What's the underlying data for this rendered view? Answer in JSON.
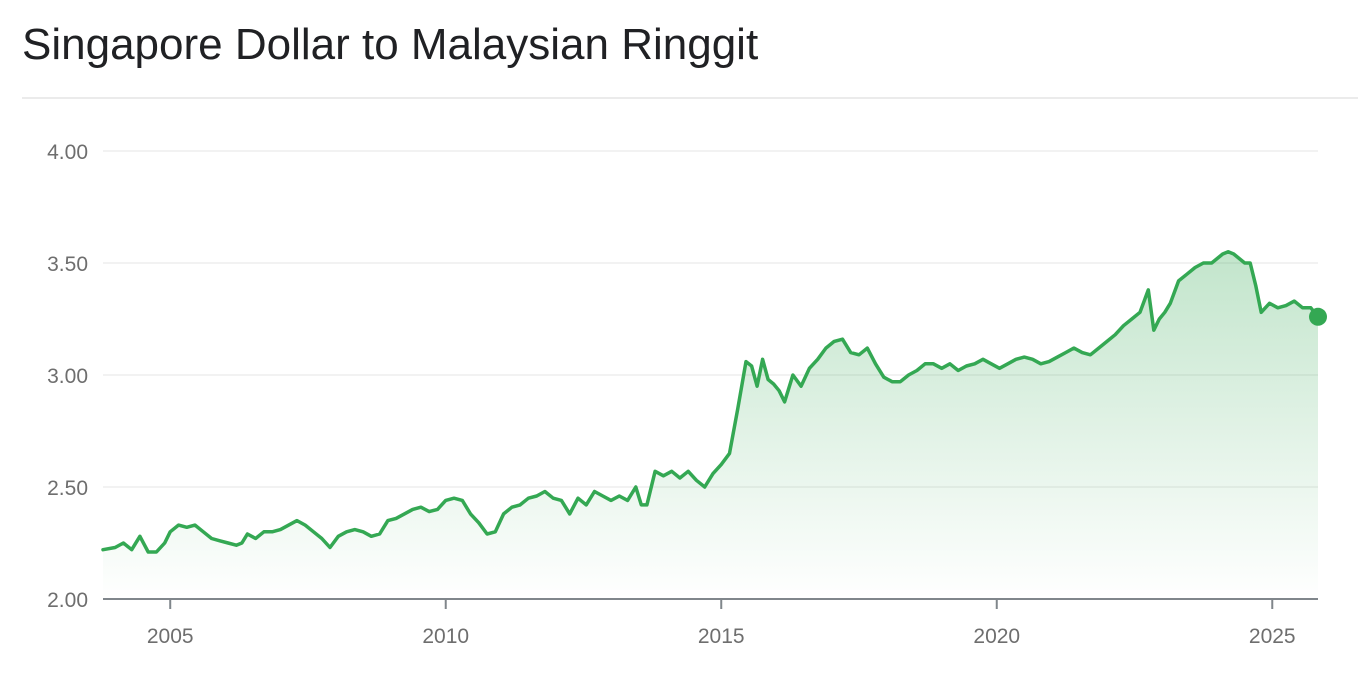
{
  "chart_data": {
    "type": "area",
    "title": "Singapore Dollar to Malaysian Ringgit",
    "xlabel": "",
    "ylabel": "",
    "xlim": [
      2003.78,
      2025.83
    ],
    "ylim": [
      2.0,
      4.0
    ],
    "y_ticks": [
      "2.00",
      "2.50",
      "3.00",
      "3.50",
      "4.00"
    ],
    "x_ticks": [
      "2005",
      "2010",
      "2015",
      "2020",
      "2025"
    ],
    "grid": true,
    "color": "#34a853",
    "series": [
      {
        "x": [
          2003.78,
          2004.0,
          2004.15,
          2004.3,
          2004.45,
          2004.6,
          2004.75,
          2004.9,
          2005.0,
          2005.15,
          2005.3,
          2005.45,
          2005.6,
          2005.75,
          2005.9,
          2006.05,
          2006.2,
          2006.3,
          2006.4,
          2006.55,
          2006.7,
          2006.85,
          2007.0,
          2007.15,
          2007.3,
          2007.45,
          2007.6,
          2007.75,
          2007.9,
          2008.05,
          2008.2,
          2008.35,
          2008.5,
          2008.65,
          2008.8,
          2008.95,
          2009.1,
          2009.25,
          2009.4,
          2009.55,
          2009.7,
          2009.85,
          2010.0,
          2010.15,
          2010.3,
          2010.45,
          2010.6,
          2010.75,
          2010.9,
          2011.05,
          2011.2,
          2011.35,
          2011.5,
          2011.65,
          2011.8,
          2011.95,
          2012.1,
          2012.25,
          2012.4,
          2012.55,
          2012.7,
          2012.85,
          2013.0,
          2013.15,
          2013.3,
          2013.45,
          2013.55,
          2013.65,
          2013.8,
          2013.95,
          2014.1,
          2014.25,
          2014.4,
          2014.55,
          2014.7,
          2014.85,
          2015.0,
          2015.15,
          2015.3,
          2015.45,
          2015.55,
          2015.65,
          2015.75,
          2015.85,
          2015.95,
          2016.05,
          2016.15,
          2016.3,
          2016.45,
          2016.6,
          2016.75,
          2016.9,
          2017.05,
          2017.2,
          2017.35,
          2017.5,
          2017.65,
          2017.8,
          2017.95,
          2018.1,
          2018.25,
          2018.4,
          2018.55,
          2018.7,
          2018.85,
          2019.0,
          2019.15,
          2019.3,
          2019.45,
          2019.6,
          2019.75,
          2019.9,
          2020.05,
          2020.2,
          2020.35,
          2020.5,
          2020.65,
          2020.8,
          2020.95,
          2021.1,
          2021.25,
          2021.4,
          2021.55,
          2021.7,
          2021.85,
          2022.0,
          2022.15,
          2022.3,
          2022.45,
          2022.6,
          2022.75,
          2022.85,
          2022.95,
          2023.05,
          2023.15,
          2023.3,
          2023.45,
          2023.6,
          2023.75,
          2023.9,
          2024.0,
          2024.1,
          2024.2,
          2024.3,
          2024.4,
          2024.5,
          2024.6,
          2024.7,
          2024.8,
          2024.95,
          2025.1,
          2025.25,
          2025.4,
          2025.55,
          2025.7,
          2025.83
        ],
        "y": [
          2.22,
          2.23,
          2.25,
          2.22,
          2.28,
          2.21,
          2.21,
          2.25,
          2.3,
          2.33,
          2.32,
          2.33,
          2.3,
          2.27,
          2.26,
          2.25,
          2.24,
          2.25,
          2.29,
          2.27,
          2.3,
          2.3,
          2.31,
          2.33,
          2.35,
          2.33,
          2.3,
          2.27,
          2.23,
          2.28,
          2.3,
          2.31,
          2.3,
          2.28,
          2.29,
          2.35,
          2.36,
          2.38,
          2.4,
          2.41,
          2.39,
          2.4,
          2.44,
          2.45,
          2.44,
          2.38,
          2.34,
          2.29,
          2.3,
          2.38,
          2.41,
          2.42,
          2.45,
          2.46,
          2.48,
          2.45,
          2.44,
          2.38,
          2.45,
          2.42,
          2.48,
          2.46,
          2.44,
          2.46,
          2.44,
          2.5,
          2.42,
          2.42,
          2.57,
          2.55,
          2.57,
          2.54,
          2.57,
          2.53,
          2.5,
          2.56,
          2.6,
          2.65,
          2.85,
          3.06,
          3.04,
          2.95,
          3.07,
          2.98,
          2.96,
          2.93,
          2.88,
          3.0,
          2.95,
          3.03,
          3.07,
          3.12,
          3.15,
          3.16,
          3.1,
          3.09,
          3.12,
          3.05,
          2.99,
          2.97,
          2.97,
          3.0,
          3.02,
          3.05,
          3.05,
          3.03,
          3.05,
          3.02,
          3.04,
          3.05,
          3.07,
          3.05,
          3.03,
          3.05,
          3.07,
          3.08,
          3.07,
          3.05,
          3.06,
          3.08,
          3.1,
          3.12,
          3.1,
          3.09,
          3.12,
          3.15,
          3.18,
          3.22,
          3.25,
          3.28,
          3.38,
          3.2,
          3.25,
          3.28,
          3.32,
          3.42,
          3.45,
          3.48,
          3.5,
          3.5,
          3.52,
          3.54,
          3.55,
          3.54,
          3.52,
          3.5,
          3.5,
          3.4,
          3.28,
          3.32,
          3.3,
          3.31,
          3.33,
          3.3,
          3.3,
          3.26
        ]
      }
    ]
  }
}
